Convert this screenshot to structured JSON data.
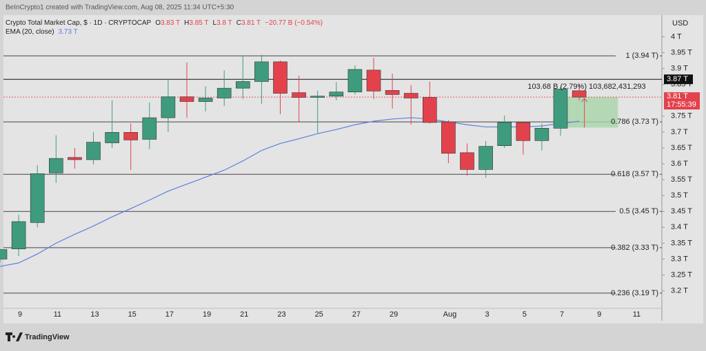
{
  "chart_data": {
    "type": "candlestick",
    "header": "BeInCrypto1 created with TradingView.com, Aug 08, 2025 11:34 UTC+5:30",
    "title": "Crypto Total Market Cap, $ · 1D · CRYPTOCAP",
    "ohlc_legend": [
      {
        "key": "O",
        "value": "3.83 T"
      },
      {
        "key": "H",
        "value": "3.85 T"
      },
      {
        "key": "L",
        "value": "3.8 T"
      },
      {
        "key": "C",
        "value": "3.81 T"
      }
    ],
    "change": "−20.77 B (−0.54%)",
    "categories": [
      null,
      "9",
      null,
      "11",
      null,
      "13",
      null,
      "15",
      null,
      "17",
      null,
      "19",
      null,
      "21",
      null,
      "23",
      null,
      "25",
      null,
      "27",
      null,
      "29",
      null,
      null,
      "Aug",
      null,
      "3",
      null,
      "5",
      null,
      "7",
      null,
      "9",
      null,
      "11"
    ],
    "open": [
      3.3,
      3.332,
      3.415,
      3.571,
      3.62,
      3.613,
      3.666,
      3.699,
      3.677,
      3.745,
      3.811,
      3.796,
      3.807,
      3.838,
      3.859,
      3.921,
      3.824,
      3.809,
      3.813,
      3.826,
      3.895,
      3.831,
      3.822,
      3.809,
      3.732,
      3.635,
      3.582,
      3.657,
      3.73,
      3.673,
      3.712,
      3.83,
      null,
      null,
      null
    ],
    "high": [
      3.33,
      3.44,
      3.596,
      3.69,
      3.65,
      3.7,
      3.8,
      3.727,
      3.793,
      3.866,
      3.919,
      3.844,
      3.894,
      3.938,
      3.943,
      3.925,
      3.877,
      3.83,
      3.857,
      3.91,
      3.934,
      3.884,
      3.848,
      3.859,
      3.738,
      3.664,
      3.672,
      3.752,
      3.734,
      3.727,
      3.842,
      3.85,
      null,
      null,
      null
    ],
    "low": [
      3.29,
      3.31,
      3.4,
      3.54,
      3.585,
      3.598,
      3.65,
      3.58,
      3.646,
      3.7,
      3.745,
      3.765,
      3.782,
      3.804,
      3.789,
      3.756,
      3.73,
      3.697,
      3.8,
      3.818,
      3.804,
      3.774,
      3.723,
      3.727,
      3.602,
      3.563,
      3.556,
      3.65,
      3.629,
      3.642,
      3.688,
      3.8,
      null,
      null,
      null
    ],
    "close": [
      3.33,
      3.418,
      3.569,
      3.617,
      3.613,
      3.668,
      3.699,
      3.675,
      3.745,
      3.811,
      3.796,
      3.807,
      3.838,
      3.859,
      3.921,
      3.822,
      3.809,
      3.813,
      3.826,
      3.897,
      3.829,
      3.818,
      3.807,
      3.73,
      3.633,
      3.582,
      3.655,
      3.73,
      3.673,
      3.712,
      3.835,
      3.81,
      null,
      null,
      null
    ],
    "up_color": "#3f9b7d",
    "down_color": "#e3424c",
    "ema": {
      "name": "EMA (20, close)",
      "value_label": "3.73 T",
      "color": "#5b7fe0",
      "values": [
        3.277,
        3.288,
        3.316,
        3.35,
        3.378,
        3.404,
        3.433,
        3.459,
        3.486,
        3.514,
        3.536,
        3.558,
        3.58,
        3.609,
        3.642,
        3.664,
        3.679,
        3.695,
        3.708,
        3.723,
        3.734,
        3.741,
        3.745,
        3.741,
        3.732,
        3.723,
        3.716,
        3.716,
        3.716,
        3.719,
        3.727,
        3.734,
        null,
        null,
        null
      ]
    },
    "ylim": [
      3.145,
      4.068
    ],
    "y_unit": "USD",
    "yticks": [
      {
        "value": 3.2,
        "label": "3.2 T"
      },
      {
        "value": 3.25,
        "label": "3.25 T"
      },
      {
        "value": 3.3,
        "label": "3.3 T"
      },
      {
        "value": 3.35,
        "label": "3.35 T"
      },
      {
        "value": 3.4,
        "label": "3.4 T"
      },
      {
        "value": 3.45,
        "label": "3.45 T"
      },
      {
        "value": 3.5,
        "label": "3.5 T"
      },
      {
        "value": 3.55,
        "label": "3.55 T"
      },
      {
        "value": 3.6,
        "label": "3.6 T"
      },
      {
        "value": 3.65,
        "label": "3.65 T"
      },
      {
        "value": 3.7,
        "label": "3.7 T"
      },
      {
        "value": 3.75,
        "label": "3.75 T"
      },
      {
        "value": 3.85,
        "label": "3.85 T"
      },
      {
        "value": 3.9,
        "label": "3.9 T"
      },
      {
        "value": 3.95,
        "label": "3.95 T"
      },
      {
        "value": 4,
        "label": "4 T"
      }
    ],
    "fib_levels": [
      {
        "value": 3.94,
        "label": "1 (3.94 T)"
      },
      {
        "value": 3.732,
        "label": "0.786 (3.73 T)"
      },
      {
        "value": 3.567,
        "label": "0.618 (3.57 T)"
      },
      {
        "value": 3.45,
        "label": "0.5 (3.45 T)"
      },
      {
        "value": 3.336,
        "label": "0.382 (3.33 T)"
      },
      {
        "value": 3.193,
        "label": "0.236 (3.19 T)"
      }
    ],
    "price_line": {
      "value": 3.866,
      "label": "3.87 T"
    },
    "last_price": {
      "value": 3.81,
      "label": "3.81 T",
      "countdown": "17:55:39"
    },
    "position": {
      "label": "103.68 B (2.79%) 103,682,431,293",
      "entry": 3.81,
      "stop": 3.714
    },
    "watermark": "TradingView"
  }
}
